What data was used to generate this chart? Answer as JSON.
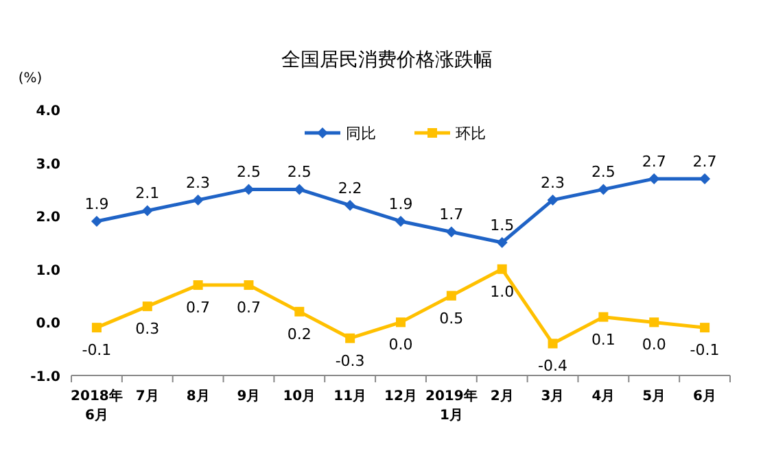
{
  "chart_data": {
    "type": "line",
    "title": "全国居民消费价格涨跌幅",
    "ylabel": "(%)",
    "categories": [
      "2018年\n6月",
      "7月",
      "8月",
      "9月",
      "10月",
      "11月",
      "12月",
      "2019年\n1月",
      "2月",
      "3月",
      "4月",
      "5月",
      "6月"
    ],
    "series": [
      {
        "name": "同比",
        "color": "#1f63c6",
        "marker": "diamond",
        "values": [
          1.9,
          2.1,
          2.3,
          2.5,
          2.5,
          2.2,
          1.9,
          1.7,
          1.5,
          2.3,
          2.5,
          2.7,
          2.7
        ],
        "value_labels": [
          "1.9",
          "2.1",
          "2.3",
          "2.5",
          "2.5",
          "2.2",
          "1.9",
          "1.7",
          "1.5",
          "2.3",
          "2.5",
          "2.7",
          "2.7"
        ]
      },
      {
        "name": "环比",
        "color": "#ffc000",
        "marker": "square",
        "values": [
          -0.1,
          0.3,
          0.7,
          0.7,
          0.2,
          -0.3,
          0.0,
          0.5,
          1.0,
          -0.4,
          0.1,
          0.0,
          -0.1
        ],
        "value_labels": [
          "-0.1",
          "0.3",
          "0.7",
          "0.7",
          "0.2",
          "-0.3",
          "0.0",
          "0.5",
          "1.0",
          "-0.4",
          "0.1",
          "0.0",
          "-0.1"
        ]
      }
    ],
    "ylim": [
      -1,
      4
    ],
    "yticks": [
      {
        "value": -1,
        "label": "-1.0"
      },
      {
        "value": 0,
        "label": "0.0"
      },
      {
        "value": 1,
        "label": "1.0"
      },
      {
        "value": 2,
        "label": "2.0"
      },
      {
        "value": 3,
        "label": "3.0"
      },
      {
        "value": 4,
        "label": "4.0"
      }
    ],
    "legend": "top",
    "line_style": "solid",
    "grid": false
  }
}
